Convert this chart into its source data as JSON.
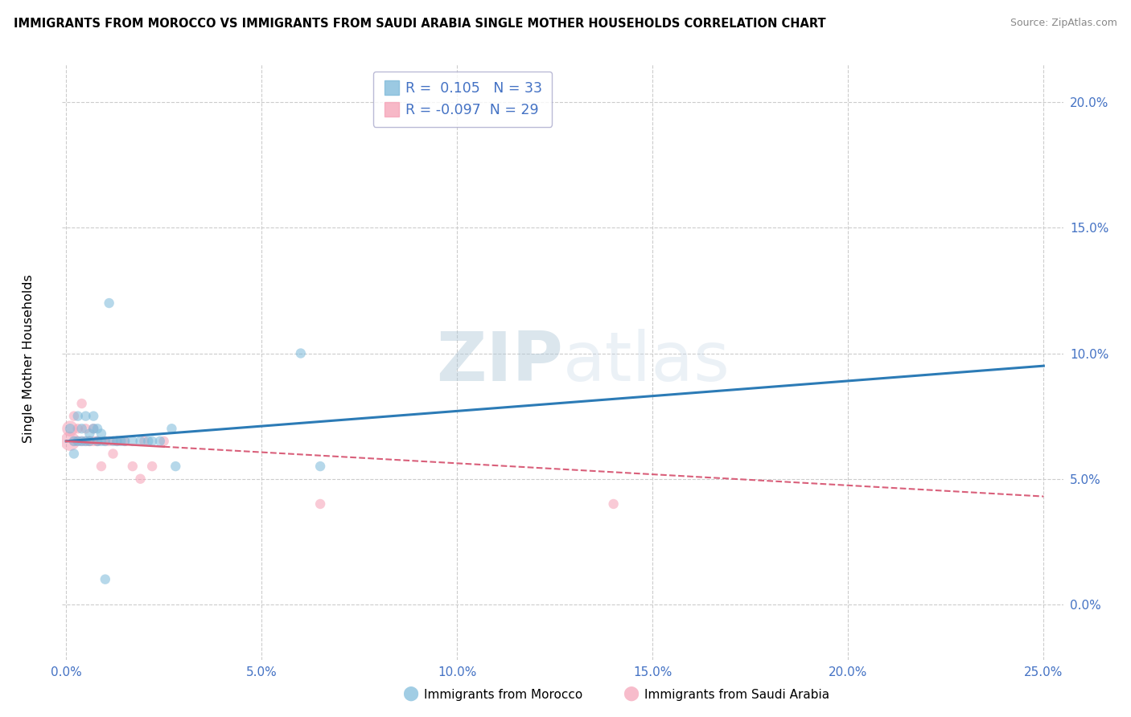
{
  "title": "IMMIGRANTS FROM MOROCCO VS IMMIGRANTS FROM SAUDI ARABIA SINGLE MOTHER HOUSEHOLDS CORRELATION CHART",
  "source": "Source: ZipAtlas.com",
  "ylabel": "Single Mother Households",
  "xlabel_morocco": "Immigrants from Morocco",
  "xlabel_saudi": "Immigrants from Saudi Arabia",
  "r_morocco": 0.105,
  "n_morocco": 33,
  "r_saudi": -0.097,
  "n_saudi": 29,
  "xlim": [
    -0.001,
    0.255
  ],
  "ylim": [
    -0.022,
    0.215
  ],
  "yticks": [
    0.0,
    0.05,
    0.1,
    0.15,
    0.2
  ],
  "ytick_labels": [
    "0.0%",
    "5.0%",
    "10.0%",
    "15.0%",
    "20.0%"
  ],
  "xticks": [
    0.0,
    0.05,
    0.1,
    0.15,
    0.2,
    0.25
  ],
  "xtick_labels": [
    "0.0%",
    "5.0%",
    "10.0%",
    "15.0%",
    "20.0%",
    "25.0%"
  ],
  "morocco_color": "#7ab8d9",
  "saudi_color": "#f5a0b5",
  "morocco_line_color": "#2c7bb6",
  "saudi_line_color": "#d95f7a",
  "background_color": "#ffffff",
  "grid_color": "#cccccc",
  "morocco_points_x": [
    0.001,
    0.002,
    0.002,
    0.003,
    0.003,
    0.004,
    0.004,
    0.005,
    0.005,
    0.006,
    0.006,
    0.007,
    0.007,
    0.008,
    0.008,
    0.009,
    0.009,
    0.01,
    0.011,
    0.012,
    0.013,
    0.014,
    0.015,
    0.017,
    0.019,
    0.021,
    0.022,
    0.024,
    0.027,
    0.028,
    0.06,
    0.065,
    0.01
  ],
  "morocco_points_y": [
    0.07,
    0.065,
    0.06,
    0.065,
    0.075,
    0.07,
    0.065,
    0.065,
    0.075,
    0.065,
    0.068,
    0.075,
    0.07,
    0.065,
    0.07,
    0.065,
    0.068,
    0.065,
    0.12,
    0.065,
    0.065,
    0.065,
    0.065,
    0.065,
    0.065,
    0.065,
    0.065,
    0.065,
    0.07,
    0.055,
    0.1,
    0.055,
    0.01
  ],
  "saudi_points_x": [
    0.001,
    0.001,
    0.002,
    0.002,
    0.003,
    0.003,
    0.004,
    0.004,
    0.005,
    0.005,
    0.006,
    0.006,
    0.007,
    0.007,
    0.008,
    0.008,
    0.009,
    0.01,
    0.011,
    0.012,
    0.013,
    0.015,
    0.017,
    0.019,
    0.02,
    0.022,
    0.025,
    0.065,
    0.14
  ],
  "saudi_points_y": [
    0.065,
    0.07,
    0.075,
    0.065,
    0.065,
    0.07,
    0.08,
    0.065,
    0.065,
    0.07,
    0.065,
    0.065,
    0.065,
    0.07,
    0.065,
    0.065,
    0.055,
    0.065,
    0.065,
    0.06,
    0.065,
    0.065,
    0.055,
    0.05,
    0.065,
    0.055,
    0.065,
    0.04,
    0.04
  ],
  "morocco_sizes": [
    80,
    80,
    80,
    80,
    80,
    80,
    80,
    80,
    80,
    80,
    80,
    80,
    80,
    80,
    80,
    80,
    80,
    80,
    80,
    80,
    80,
    80,
    80,
    80,
    80,
    80,
    80,
    80,
    80,
    80,
    80,
    80,
    80
  ],
  "saudi_sizes": [
    300,
    200,
    80,
    80,
    80,
    80,
    80,
    80,
    80,
    80,
    80,
    80,
    80,
    80,
    80,
    80,
    80,
    80,
    80,
    80,
    80,
    80,
    80,
    80,
    80,
    80,
    80,
    80,
    80
  ],
  "morocco_line_start_y": 0.065,
  "morocco_line_end_y": 0.095,
  "saudi_line_start_y": 0.065,
  "saudi_line_end_y": 0.043
}
